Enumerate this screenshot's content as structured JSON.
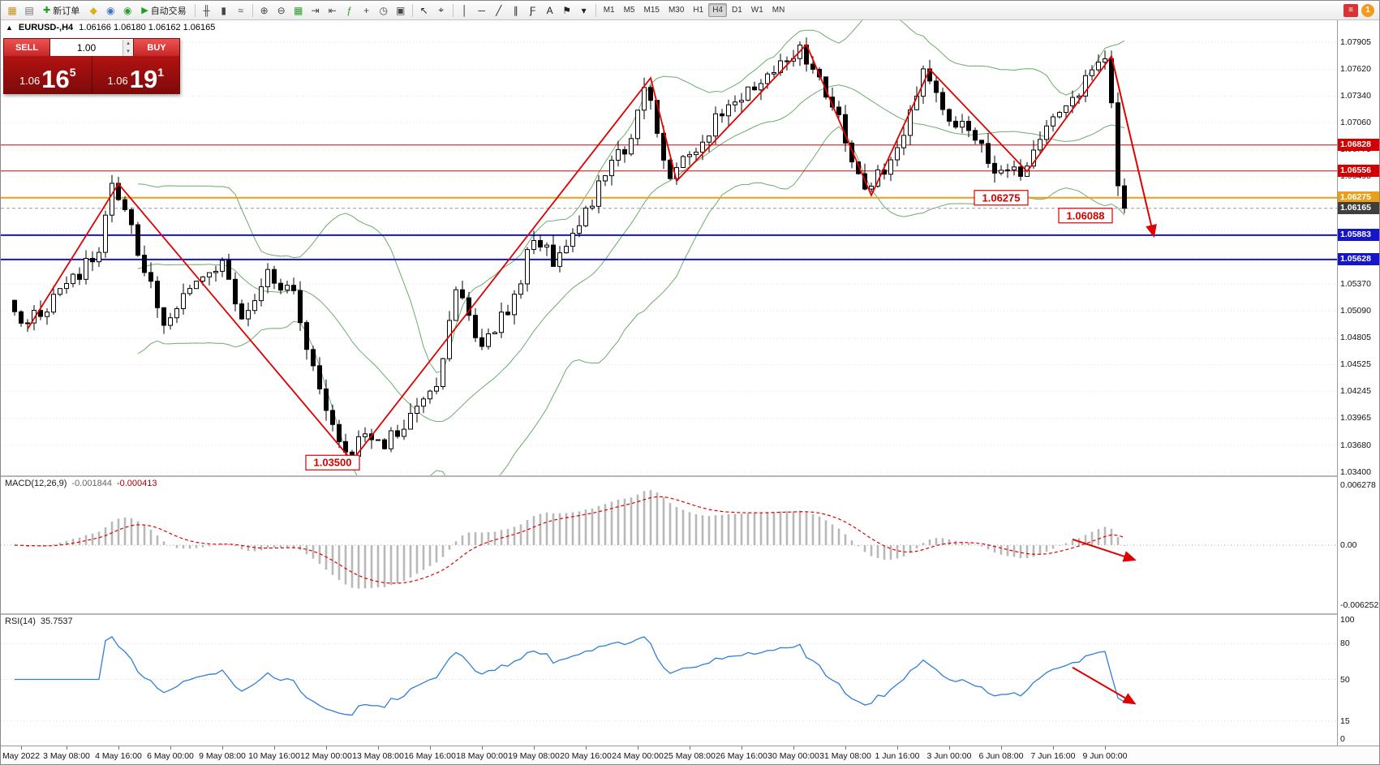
{
  "toolbar": {
    "items": [
      {
        "type": "icon",
        "name": "new-chart-icon",
        "glyph": "▦",
        "color": "#c89018"
      },
      {
        "type": "icon",
        "name": "profiles-icon",
        "glyph": "▤",
        "color": "#707070"
      },
      {
        "type": "button",
        "name": "new-order-button",
        "glyph": "✚",
        "glyph_color": "#1f9e1f",
        "label": "新订单"
      },
      {
        "type": "icon",
        "name": "metaeditor-icon",
        "glyph": "◆",
        "color": "#d9b01c"
      },
      {
        "type": "icon",
        "name": "market-icon",
        "glyph": "◉",
        "color": "#3a76c4"
      },
      {
        "type": "icon",
        "name": "signals-icon",
        "glyph": "◉",
        "color": "#2a9e2a"
      },
      {
        "type": "button",
        "name": "autotrade-button",
        "glyph": "▶",
        "glyph_color": "#1f9e1f",
        "label": "自动交易"
      },
      {
        "type": "sep"
      },
      {
        "type": "icon",
        "name": "bar-chart-icon",
        "glyph": "╫",
        "color": "#444"
      },
      {
        "type": "icon",
        "name": "candlestick-chart-icon",
        "glyph": "▮",
        "color": "#444"
      },
      {
        "type": "icon",
        "name": "line-chart-icon",
        "glyph": "≈",
        "color": "#444"
      },
      {
        "type": "sep"
      },
      {
        "type": "icon",
        "name": "zoom-in-icon",
        "glyph": "⊕",
        "color": "#444"
      },
      {
        "type": "icon",
        "name": "zoom-out-icon",
        "glyph": "⊖",
        "color": "#444"
      },
      {
        "type": "icon",
        "name": "tile-windows-icon",
        "glyph": "▦",
        "color": "#2a9e2a"
      },
      {
        "type": "icon",
        "name": "auto-scroll-icon",
        "glyph": "⇥",
        "color": "#444"
      },
      {
        "type": "icon",
        "name": "chart-shift-icon",
        "glyph": "⇤",
        "color": "#444"
      },
      {
        "type": "icon",
        "name": "indicators-icon",
        "glyph": "ƒ",
        "color": "#2a9e2a"
      },
      {
        "type": "icon",
        "name": "add-indicator-dropdown-icon",
        "glyph": "+",
        "color": "#444"
      },
      {
        "type": "icon",
        "name": "periods-icon",
        "glyph": "◷",
        "color": "#444"
      },
      {
        "type": "icon",
        "name": "templates-icon",
        "glyph": "▣",
        "color": "#444"
      },
      {
        "type": "sep"
      },
      {
        "type": "icon",
        "name": "cursor-icon",
        "glyph": "↖",
        "color": "#222"
      },
      {
        "type": "icon",
        "name": "crosshair-icon",
        "glyph": "⌖",
        "color": "#222"
      },
      {
        "type": "sep"
      },
      {
        "type": "icon",
        "name": "vertical-line-icon",
        "glyph": "│",
        "color": "#222"
      },
      {
        "type": "icon",
        "name": "horizontal-line-icon",
        "glyph": "─",
        "color": "#222"
      },
      {
        "type": "icon",
        "name": "trendline-icon",
        "glyph": "╱",
        "color": "#222"
      },
      {
        "type": "icon",
        "name": "equidistant-channel-icon",
        "glyph": "∥",
        "color": "#222"
      },
      {
        "type": "icon",
        "name": "fibonacci-icon",
        "glyph": "Ƒ",
        "color": "#222"
      },
      {
        "type": "icon",
        "name": "text-icon",
        "glyph": "A",
        "color": "#222"
      },
      {
        "type": "icon",
        "name": "arrow-label-icon",
        "glyph": "⚑",
        "color": "#222"
      },
      {
        "type": "icon",
        "name": "shapes-dropdown-icon",
        "glyph": "▾",
        "color": "#222"
      },
      {
        "type": "sep"
      }
    ],
    "timeframes": [
      "M1",
      "M5",
      "M15",
      "M30",
      "H1",
      "H4",
      "D1",
      "W1",
      "MN"
    ],
    "active_timeframe": "H4",
    "right": {
      "news_glyph": "≡",
      "badge": "1"
    }
  },
  "chart": {
    "collapse_glyph": "▲",
    "symbol_title": "EURUSD-,H4",
    "ohlc": "1.06166 1.06180 1.06162 1.06165"
  },
  "trade_panel": {
    "sell_label": "SELL",
    "buy_label": "BUY",
    "volume": "1.00",
    "spinner_up": "▴",
    "spinner_down": "▾",
    "sell_price": {
      "head": "1.06",
      "big": "16",
      "sup": "5"
    },
    "buy_price": {
      "head": "1.06",
      "big": "19",
      "sup": "1"
    }
  },
  "price_axis": {
    "ticks": [
      "1.07905",
      "1.07620",
      "1.07340",
      "1.07060",
      "1.06775",
      "1.06495",
      "1.05370",
      "1.05090",
      "1.04805",
      "1.04525",
      "1.04245",
      "1.03965",
      "1.03680",
      "1.03400"
    ],
    "grid_levels": [
      1.07905,
      1.0762,
      1.0734,
      1.0706,
      1.06775,
      1.06495,
      1.06215,
      1.05935,
      1.0565,
      1.0537,
      1.0509,
      1.04805,
      1.04525,
      1.04245,
      1.03965,
      1.0368,
      1.034
    ]
  },
  "hlines": [
    {
      "price": 1.06828,
      "label": "1.06828",
      "color": "#d20000",
      "width": 1
    },
    {
      "price": 1.06556,
      "label": "1.06556",
      "color": "#d20000",
      "width": 1
    },
    {
      "price": 1.06275,
      "label": "1.06275",
      "color": "#e8a01a",
      "width": 2
    },
    {
      "price": 1.05883,
      "label": "1.05883",
      "color": "#1515cc",
      "width": 2
    },
    {
      "price": 1.05628,
      "label": "1.05628",
      "color": "#1515cc",
      "width": 2
    }
  ],
  "current_price": {
    "value": "1.06165",
    "price": 1.06165,
    "box_bg": "#3f3f3f"
  },
  "annotations": [
    {
      "text": "1.06275",
      "i": 152,
      "price": 1.06275
    },
    {
      "text": "1.06088",
      "i": 165,
      "price": 1.06088
    },
    {
      "text": "1.03500",
      "i": 49,
      "price": 1.035
    }
  ],
  "arrows": {
    "main": {
      "from": [
        169,
        1.0776
      ],
      "to": [
        175.5,
        1.0588
      ]
    },
    "macd": {
      "from": [
        163,
        0.0006
      ],
      "to": [
        172.5,
        -0.0015
      ]
    },
    "rsi": {
      "from": [
        163,
        60
      ],
      "to": [
        172.5,
        30
      ]
    }
  },
  "macd": {
    "name": "MACD(12,26,9)",
    "value_main": "-0.001844",
    "value_signal": "-0.000413",
    "axis": {
      "top_label": "0.006278",
      "zero_label": "0.00",
      "bottom_label": "-0.006252"
    },
    "params": {
      "fast": 12,
      "slow": 26,
      "signal": 9
    }
  },
  "rsi": {
    "name": "RSI(14)",
    "value": "35.7537",
    "period": 14,
    "axis": [
      {
        "v": 100,
        "label": "100"
      },
      {
        "v": 80,
        "label": "80"
      },
      {
        "v": 50,
        "label": "50"
      },
      {
        "v": 15,
        "label": "15"
      },
      {
        "v": 0,
        "label": "0"
      }
    ],
    "dotted_levels": [
      80,
      50,
      15
    ]
  },
  "time_labels": [
    {
      "text": "May 2022",
      "i": 1
    },
    {
      "text": "3 May 08:00",
      "i": 8
    },
    {
      "text": "4 May 16:00",
      "i": 16
    },
    {
      "text": "6 May 00:00",
      "i": 24
    },
    {
      "text": "9 May 08:00",
      "i": 32
    },
    {
      "text": "10 May 16:00",
      "i": 40
    },
    {
      "text": "12 May 00:00",
      "i": 48
    },
    {
      "text": "13 May 08:00",
      "i": 56
    },
    {
      "text": "16 May 16:00",
      "i": 64
    },
    {
      "text": "18 May 00:00",
      "i": 72
    },
    {
      "text": "19 May 08:00",
      "i": 80
    },
    {
      "text": "20 May 16:00",
      "i": 88
    },
    {
      "text": "24 May 00:00",
      "i": 96
    },
    {
      "text": "25 May 08:00",
      "i": 104
    },
    {
      "text": "26 May 16:00",
      "i": 112
    },
    {
      "text": "30 May 00:00",
      "i": 120
    },
    {
      "text": "31 May 08:00",
      "i": 128
    },
    {
      "text": "1 Jun 16:00",
      "i": 136
    },
    {
      "text": "3 Jun 00:00",
      "i": 144
    },
    {
      "text": "6 Jun 08:00",
      "i": 152
    },
    {
      "text": "7 Jun 16:00",
      "i": 160
    },
    {
      "text": "9 Jun 00:00",
      "i": 168
    }
  ],
  "chart_data": {
    "type": "candlestick",
    "symbol": "EURUSD-",
    "timeframe": "H4",
    "candles_count": 172,
    "seed": 12,
    "last_close": 1.06165,
    "price_scale": {
      "top": 1.07905,
      "bottom": 1.034
    },
    "price_anchors": [
      [
        0,
        1.052
      ],
      [
        3,
        1.0495
      ],
      [
        8,
        1.053
      ],
      [
        14,
        1.057
      ],
      [
        16,
        1.064
      ],
      [
        18,
        1.061
      ],
      [
        24,
        1.0495
      ],
      [
        28,
        1.054
      ],
      [
        33,
        1.056
      ],
      [
        36,
        1.05
      ],
      [
        40,
        1.0548
      ],
      [
        44,
        1.053
      ],
      [
        47,
        1.0448
      ],
      [
        50,
        1.0392
      ],
      [
        52,
        1.0355
      ],
      [
        55,
        1.0382
      ],
      [
        58,
        1.0372
      ],
      [
        62,
        1.04
      ],
      [
        66,
        1.0435
      ],
      [
        69,
        1.053
      ],
      [
        73,
        1.047
      ],
      [
        78,
        1.052
      ],
      [
        81,
        1.059
      ],
      [
        84,
        1.056
      ],
      [
        88,
        1.06
      ],
      [
        92,
        1.065
      ],
      [
        96,
        1.069
      ],
      [
        98,
        1.0748
      ],
      [
        102,
        1.065
      ],
      [
        106,
        1.068
      ],
      [
        110,
        1.072
      ],
      [
        114,
        1.074
      ],
      [
        118,
        1.076
      ],
      [
        122,
        1.0786
      ],
      [
        126,
        1.074
      ],
      [
        129,
        1.069
      ],
      [
        132,
        1.063
      ],
      [
        135,
        1.066
      ],
      [
        138,
        1.07
      ],
      [
        141,
        1.076
      ],
      [
        144,
        1.072
      ],
      [
        148,
        1.07
      ],
      [
        152,
        1.066
      ],
      [
        156,
        1.0657
      ],
      [
        160,
        1.07
      ],
      [
        164,
        1.073
      ],
      [
        167,
        1.0758
      ],
      [
        169,
        1.0774
      ],
      [
        170,
        1.073
      ],
      [
        171,
        1.064
      ],
      [
        172,
        1.06165
      ]
    ],
    "zigzag": [
      [
        2,
        1.049
      ],
      [
        16,
        1.0642
      ],
      [
        52,
        1.0352
      ],
      [
        98,
        1.0753
      ],
      [
        102,
        1.0645
      ],
      [
        122,
        1.0788
      ],
      [
        132,
        1.063
      ],
      [
        141,
        1.0762
      ],
      [
        156,
        1.0655
      ],
      [
        169,
        1.0776
      ]
    ],
    "bollinger": {
      "period": 20,
      "deviation": 2
    }
  }
}
